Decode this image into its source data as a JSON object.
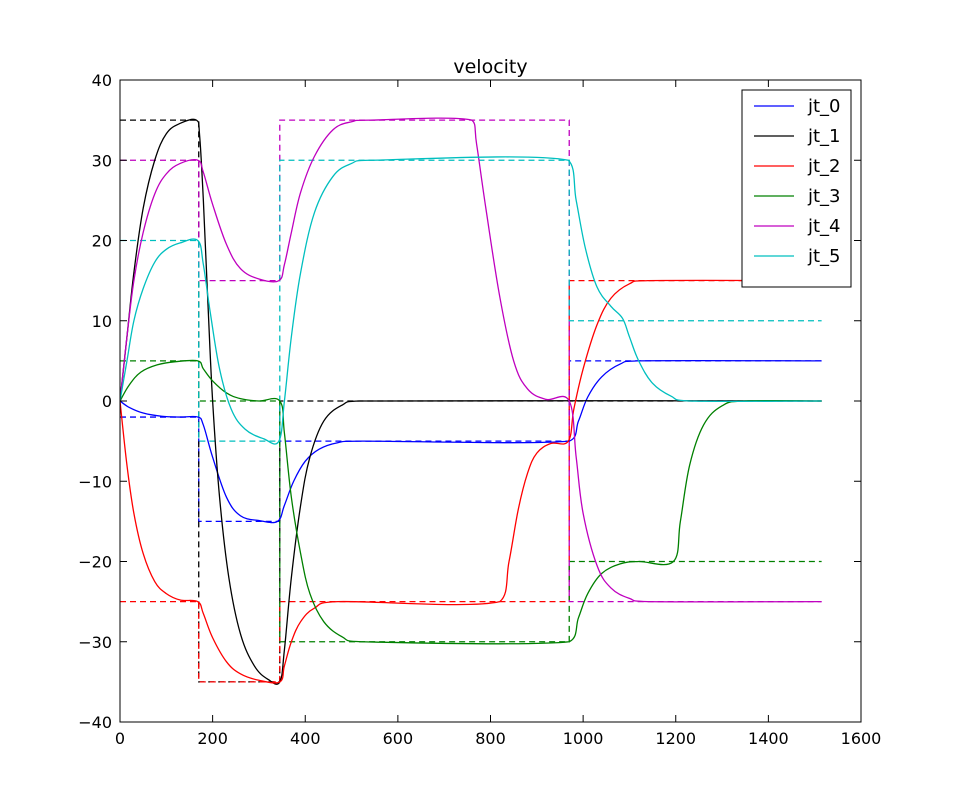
{
  "chart_data": {
    "type": "line",
    "title": "velocity",
    "xlabel": "",
    "ylabel": "",
    "xlim": [
      0,
      1600
    ],
    "ylim": [
      -40,
      40
    ],
    "x_ticks": [
      0,
      200,
      400,
      600,
      800,
      1000,
      1200,
      1400,
      1600
    ],
    "x_tick_labels": [
      "0",
      "200",
      "400",
      "600",
      "800",
      "1000",
      "1200",
      "1400",
      "1600"
    ],
    "y_ticks": [
      40,
      30,
      20,
      10,
      0,
      -10,
      -20,
      -30,
      -40
    ],
    "y_tick_labels": [
      "40",
      "30",
      "20",
      "10",
      "0",
      "−10",
      "−20",
      "−30",
      "−40"
    ],
    "grid": false,
    "legend_position": "top-right",
    "colors": {
      "jt_0": "#0000ff",
      "jt_1": "#000000",
      "jt_2": "#ff0000",
      "jt_3": "#008000",
      "jt_4": "#bf00bf",
      "jt_5": "#00bfbf"
    },
    "series": [
      {
        "name": "jt_0",
        "color": "#0000ff",
        "points": [
          [
            0,
            0
          ],
          [
            20,
            -0.8
          ],
          [
            50,
            -1.5
          ],
          [
            90,
            -1.9
          ],
          [
            130,
            -2
          ],
          [
            168,
            -2
          ],
          [
            180,
            -3
          ],
          [
            200,
            -7
          ],
          [
            230,
            -12
          ],
          [
            260,
            -14.3
          ],
          [
            300,
            -14.9
          ],
          [
            340,
            -15
          ],
          [
            355,
            -13
          ],
          [
            375,
            -10
          ],
          [
            400,
            -7.5
          ],
          [
            430,
            -6
          ],
          [
            470,
            -5.2
          ],
          [
            520,
            -5
          ],
          [
            970,
            -5
          ],
          [
            990,
            -2.5
          ],
          [
            1010,
            0.5
          ],
          [
            1040,
            3
          ],
          [
            1080,
            4.6
          ],
          [
            1120,
            5
          ],
          [
            1515,
            5
          ]
        ]
      },
      {
        "name": "jt_1",
        "color": "#000000",
        "points": [
          [
            0,
            0
          ],
          [
            15,
            8
          ],
          [
            30,
            16
          ],
          [
            50,
            24
          ],
          [
            75,
            30
          ],
          [
            100,
            33.3
          ],
          [
            130,
            34.6
          ],
          [
            165,
            35
          ],
          [
            172,
            33
          ],
          [
            180,
            25
          ],
          [
            190,
            12
          ],
          [
            200,
            0
          ],
          [
            215,
            -12
          ],
          [
            235,
            -22
          ],
          [
            260,
            -29
          ],
          [
            290,
            -33
          ],
          [
            320,
            -34.7
          ],
          [
            345,
            -35
          ],
          [
            355,
            -31
          ],
          [
            370,
            -22
          ],
          [
            390,
            -13
          ],
          [
            410,
            -7
          ],
          [
            440,
            -2.5
          ],
          [
            480,
            -0.5
          ],
          [
            520,
            0
          ],
          [
            1515,
            0
          ]
        ]
      },
      {
        "name": "jt_2",
        "color": "#ff0000",
        "points": [
          [
            0,
            0
          ],
          [
            15,
            -8
          ],
          [
            30,
            -14
          ],
          [
            50,
            -19
          ],
          [
            75,
            -22.5
          ],
          [
            100,
            -24
          ],
          [
            130,
            -24.8
          ],
          [
            168,
            -25
          ],
          [
            180,
            -26.5
          ],
          [
            200,
            -29.5
          ],
          [
            230,
            -32.5
          ],
          [
            260,
            -34
          ],
          [
            300,
            -34.8
          ],
          [
            345,
            -35
          ],
          [
            355,
            -33
          ],
          [
            370,
            -30
          ],
          [
            390,
            -27.5
          ],
          [
            420,
            -25.8
          ],
          [
            470,
            -25
          ],
          [
            820,
            -25
          ],
          [
            840,
            -20
          ],
          [
            860,
            -13.5
          ],
          [
            880,
            -9
          ],
          [
            900,
            -6.5
          ],
          [
            930,
            -5.3
          ],
          [
            968,
            -5
          ],
          [
            980,
            -1
          ],
          [
            1000,
            4
          ],
          [
            1030,
            9.5
          ],
          [
            1060,
            12.8
          ],
          [
            1100,
            14.6
          ],
          [
            1140,
            15
          ],
          [
            1515,
            15
          ]
        ]
      },
      {
        "name": "jt_3",
        "color": "#008000",
        "points": [
          [
            0,
            0
          ],
          [
            20,
            2
          ],
          [
            45,
            3.6
          ],
          [
            80,
            4.5
          ],
          [
            120,
            4.9
          ],
          [
            168,
            5
          ],
          [
            180,
            4
          ],
          [
            200,
            2.5
          ],
          [
            230,
            1
          ],
          [
            260,
            0.3
          ],
          [
            300,
            0
          ],
          [
            345,
            0
          ],
          [
            355,
            -4
          ],
          [
            370,
            -12
          ],
          [
            390,
            -19
          ],
          [
            410,
            -24
          ],
          [
            440,
            -27.5
          ],
          [
            480,
            -29.4
          ],
          [
            520,
            -30
          ],
          [
            970,
            -30
          ],
          [
            990,
            -27
          ],
          [
            1010,
            -24
          ],
          [
            1040,
            -21.5
          ],
          [
            1080,
            -20.3
          ],
          [
            1120,
            -20
          ],
          [
            1195,
            -20
          ],
          [
            1210,
            -15
          ],
          [
            1230,
            -8
          ],
          [
            1260,
            -3
          ],
          [
            1300,
            -0.6
          ],
          [
            1350,
            0
          ],
          [
            1515,
            0
          ]
        ]
      },
      {
        "name": "jt_4",
        "color": "#bf00bf",
        "points": [
          [
            0,
            0
          ],
          [
            15,
            8
          ],
          [
            30,
            15
          ],
          [
            50,
            21
          ],
          [
            75,
            25.8
          ],
          [
            100,
            28.3
          ],
          [
            130,
            29.6
          ],
          [
            168,
            30
          ],
          [
            180,
            28.5
          ],
          [
            200,
            24.5
          ],
          [
            230,
            19.5
          ],
          [
            260,
            16.5
          ],
          [
            300,
            15.2
          ],
          [
            343,
            15
          ],
          [
            355,
            17
          ],
          [
            370,
            21
          ],
          [
            390,
            26
          ],
          [
            420,
            30.5
          ],
          [
            460,
            33.8
          ],
          [
            500,
            34.8
          ],
          [
            540,
            35
          ],
          [
            760,
            35
          ],
          [
            770,
            32
          ],
          [
            790,
            24
          ],
          [
            820,
            13
          ],
          [
            850,
            5
          ],
          [
            880,
            1.5
          ],
          [
            920,
            0.2
          ],
          [
            970,
            0
          ],
          [
            985,
            -7
          ],
          [
            1000,
            -14
          ],
          [
            1030,
            -20.5
          ],
          [
            1060,
            -23.3
          ],
          [
            1100,
            -24.6
          ],
          [
            1140,
            -25
          ],
          [
            1515,
            -25
          ]
        ]
      },
      {
        "name": "jt_5",
        "color": "#00bfbf",
        "points": [
          [
            0,
            0
          ],
          [
            15,
            5
          ],
          [
            30,
            10
          ],
          [
            50,
            14
          ],
          [
            75,
            17.3
          ],
          [
            100,
            18.9
          ],
          [
            130,
            19.7
          ],
          [
            168,
            20
          ],
          [
            180,
            17
          ],
          [
            195,
            11
          ],
          [
            215,
            4
          ],
          [
            240,
            -1
          ],
          [
            270,
            -3.5
          ],
          [
            310,
            -4.7
          ],
          [
            343,
            -5
          ],
          [
            355,
            0
          ],
          [
            370,
            8
          ],
          [
            390,
            16
          ],
          [
            420,
            23.5
          ],
          [
            460,
            28
          ],
          [
            500,
            29.6
          ],
          [
            540,
            30
          ],
          [
            968,
            30
          ],
          [
            985,
            25
          ],
          [
            1005,
            19
          ],
          [
            1030,
            14.2
          ],
          [
            1060,
            11.8
          ],
          [
            1085,
            10.3
          ],
          [
            1100,
            8
          ],
          [
            1120,
            5
          ],
          [
            1150,
            2.2
          ],
          [
            1190,
            0.6
          ],
          [
            1230,
            0
          ],
          [
            1515,
            0
          ]
        ]
      }
    ],
    "reference_series": [
      {
        "name": "jt_0 target",
        "color": "#0000ff",
        "dashed": true,
        "points": [
          [
            0,
            -2
          ],
          [
            170,
            -2
          ],
          [
            170,
            -15
          ],
          [
            345,
            -15
          ],
          [
            345,
            -5
          ],
          [
            970,
            -5
          ],
          [
            970,
            5
          ],
          [
            1515,
            5
          ]
        ]
      },
      {
        "name": "jt_1 target",
        "color": "#000000",
        "dashed": true,
        "points": [
          [
            0,
            35
          ],
          [
            170,
            35
          ],
          [
            170,
            -35
          ],
          [
            345,
            -35
          ],
          [
            345,
            0
          ],
          [
            1515,
            0
          ]
        ]
      },
      {
        "name": "jt_2 target",
        "color": "#ff0000",
        "dashed": true,
        "points": [
          [
            0,
            -25
          ],
          [
            170,
            -25
          ],
          [
            170,
            -35
          ],
          [
            345,
            -35
          ],
          [
            345,
            -25
          ],
          [
            970,
            -25
          ],
          [
            970,
            15
          ],
          [
            1515,
            15
          ]
        ]
      },
      {
        "name": "jt_3 target",
        "color": "#008000",
        "dashed": true,
        "points": [
          [
            0,
            5
          ],
          [
            170,
            5
          ],
          [
            170,
            0
          ],
          [
            345,
            0
          ],
          [
            345,
            -30
          ],
          [
            970,
            -30
          ],
          [
            970,
            -20
          ],
          [
            1515,
            -20
          ]
        ]
      },
      {
        "name": "jt_4 target",
        "color": "#bf00bf",
        "dashed": true,
        "points": [
          [
            0,
            30
          ],
          [
            170,
            30
          ],
          [
            170,
            15
          ],
          [
            345,
            15
          ],
          [
            345,
            35
          ],
          [
            970,
            35
          ],
          [
            970,
            -25
          ],
          [
            1515,
            -25
          ]
        ]
      },
      {
        "name": "jt_5 target",
        "color": "#00bfbf",
        "dashed": true,
        "points": [
          [
            0,
            20
          ],
          [
            170,
            20
          ],
          [
            170,
            -5
          ],
          [
            345,
            -5
          ],
          [
            345,
            30
          ],
          [
            970,
            30
          ],
          [
            970,
            10
          ],
          [
            1515,
            10
          ]
        ]
      }
    ]
  }
}
